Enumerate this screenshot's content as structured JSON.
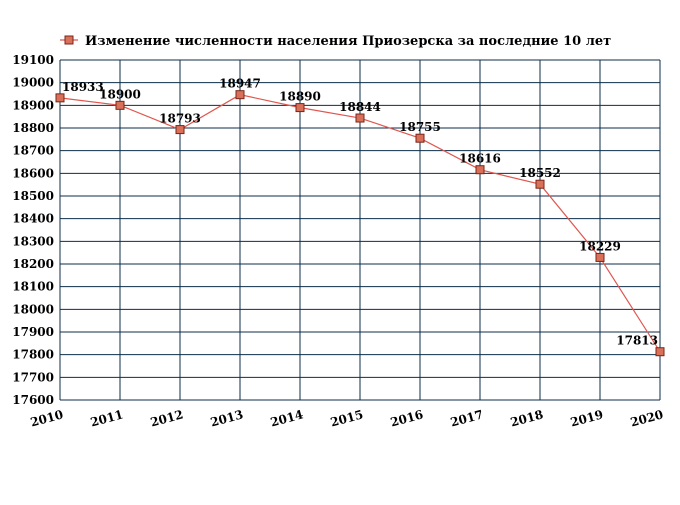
{
  "colors": {
    "line": "#e0574f",
    "marker_fill": "#d9705a",
    "marker_stroke": "#7a2418",
    "grid": "#0c2e4a",
    "background": "#ffffff",
    "text": "#000000"
  },
  "chart_data": {
    "type": "line",
    "title": "",
    "xlabel": "",
    "ylabel": "",
    "x": [
      2010,
      2011,
      2012,
      2013,
      2014,
      2015,
      2016,
      2017,
      2018,
      2019,
      2020
    ],
    "series": [
      {
        "name": "Изменение численности населения Приозерска за последние 10 лет",
        "values": [
          18933,
          18900,
          18793,
          18947,
          18890,
          18844,
          18755,
          18616,
          18552,
          18229,
          17813
        ]
      }
    ],
    "data_labels": [
      "18933",
      "18900",
      "18793",
      "18947",
      "18890",
      "18844",
      "18755",
      "18616",
      "18552",
      "18229",
      "17813"
    ],
    "x_tick_labels": [
      "2010",
      "2011",
      "2012",
      "2013",
      "2014",
      "2015",
      "2016",
      "2017",
      "2018",
      "2019",
      "2020"
    ],
    "y_tick_labels": [
      "17600",
      "17700",
      "17800",
      "17900",
      "18000",
      "18100",
      "18200",
      "18300",
      "18400",
      "18500",
      "18600",
      "18700",
      "18800",
      "18900",
      "19000",
      "19100"
    ],
    "ylim": [
      17600,
      19100
    ],
    "xlim": [
      2010,
      2020
    ],
    "y_step": 100,
    "grid": true,
    "legend_position": "top"
  }
}
